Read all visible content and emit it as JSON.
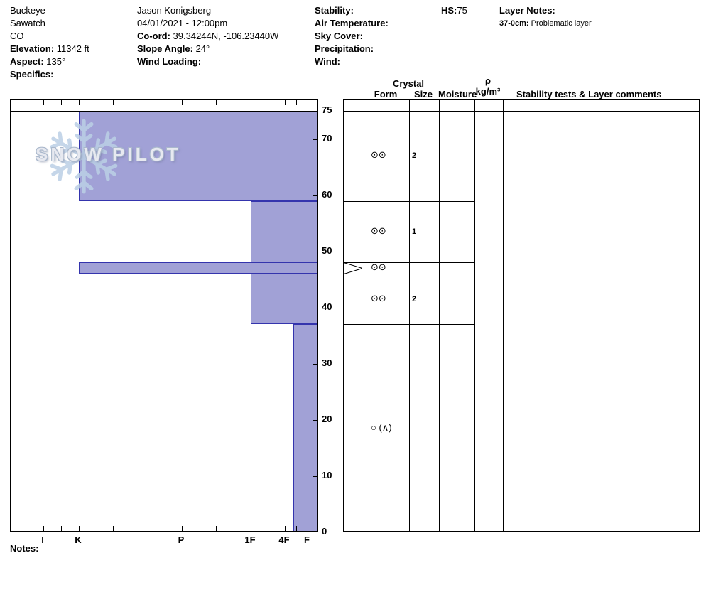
{
  "header": {
    "location": {
      "name": "Buckeye",
      "range": "Sawatch",
      "state": "CO",
      "elevation_label": "Elevation:",
      "elevation_value": " 11342 ft",
      "aspect_label": "Aspect:",
      "aspect_value": " 135°",
      "specifics_label": "Specifics:"
    },
    "observer": {
      "name": "Jason Konigsberg",
      "datetime": "04/01/2021 - 12:00pm",
      "coord_label": "Co-ord:",
      "coord_value": " 39.34244N, -106.23440W",
      "slope_angle_label": "Slope Angle:",
      "slope_angle_value": " 24°",
      "wind_loading_label": "Wind Loading:"
    },
    "conditions": {
      "stability_label": "Stability:",
      "air_temperature_label": "Air Temperature:",
      "sky_cover_label": "Sky Cover:",
      "precipitation_label": "Precipitation:",
      "wind_label": "Wind:"
    },
    "hs_label": "HS:",
    "hs_value": "75",
    "layer_notes_label": "Layer Notes:",
    "layer_note_range": "37-0cm:",
    "layer_note_text": " Problematic layer"
  },
  "logo": {
    "word1": "SNOW",
    "word2": "PILOT"
  },
  "panel_headers": {
    "crystal": "Crystal",
    "form": "Form",
    "size": "Size",
    "moisture": "Moisture",
    "density_symbol": "ρ",
    "density_units": "kg/m³",
    "comments": "Stability tests & Layer comments"
  },
  "notes_label": "Notes:",
  "chart_data": {
    "type": "bar",
    "title": "Snow pit hardness profile (depth vs hand hardness)",
    "orientation": "horizontal-bars-anchored-right",
    "total_depth_cm": 75,
    "depth_axis": {
      "unit": "cm",
      "range": [
        0,
        75
      ],
      "tick_labels": [
        75,
        70,
        60,
        50,
        40,
        30,
        20,
        10,
        0
      ]
    },
    "hardness_axis": {
      "labels": [
        "I",
        "K",
        "P",
        "1F",
        "4F",
        "F"
      ],
      "note": "hardest (I) at left, softest (F) at right"
    },
    "layers": [
      {
        "top_cm": 75,
        "bottom_cm": 59,
        "hardness": "K",
        "grain_form_symbol": "⊙⊙",
        "grain_size": "2",
        "thin": false
      },
      {
        "top_cm": 59,
        "bottom_cm": 48,
        "hardness": "1F",
        "grain_form_symbol": "⊙⊙",
        "grain_size": "1",
        "thin": false
      },
      {
        "top_cm": 48,
        "bottom_cm": 46,
        "hardness": "K",
        "grain_form_symbol": "⊙⊙",
        "grain_size": "",
        "thin": true
      },
      {
        "top_cm": 46,
        "bottom_cm": 37,
        "hardness": "1F",
        "grain_form_symbol": "⊙⊙",
        "grain_size": "2",
        "thin": false
      },
      {
        "top_cm": 37,
        "bottom_cm": 0,
        "hardness": "4F-",
        "grain_form_symbol": "○ (∧)",
        "grain_size": "",
        "thin": false
      }
    ],
    "bar_fill": "#a1a1d6",
    "bar_border": "#3434ad"
  }
}
